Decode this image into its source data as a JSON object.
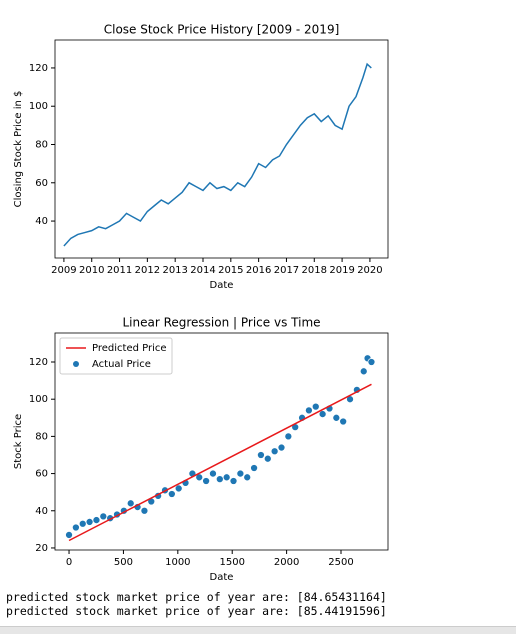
{
  "chart_data": [
    {
      "type": "line",
      "title": "Close Stock Price History [2009 - 2019]",
      "xlabel": "Date",
      "ylabel": "Closing Stock Price in $",
      "color": "#1f77b4",
      "x": [
        2009.0,
        2009.25,
        2009.5,
        2009.75,
        2010.0,
        2010.25,
        2010.5,
        2010.75,
        2011.0,
        2011.25,
        2011.5,
        2011.75,
        2012.0,
        2012.25,
        2012.5,
        2012.75,
        2013.0,
        2013.25,
        2013.5,
        2013.75,
        2014.0,
        2014.25,
        2014.5,
        2014.75,
        2015.0,
        2015.25,
        2015.5,
        2015.75,
        2016.0,
        2016.25,
        2016.5,
        2016.75,
        2017.0,
        2017.25,
        2017.5,
        2017.75,
        2018.0,
        2018.25,
        2018.5,
        2018.75,
        2019.0,
        2019.25,
        2019.5,
        2019.75,
        2019.9,
        2020.05
      ],
      "values": [
        27,
        31,
        33,
        34,
        35,
        37,
        36,
        38,
        40,
        44,
        42,
        40,
        45,
        48,
        51,
        49,
        52,
        55,
        60,
        58,
        56,
        60,
        57,
        58,
        56,
        60,
        58,
        63,
        70,
        68,
        72,
        74,
        80,
        85,
        90,
        94,
        96,
        92,
        95,
        90,
        88,
        100,
        105,
        115,
        122,
        120
      ],
      "xlim": [
        2008.68,
        2020.65
      ],
      "xticks": [
        2009,
        2010,
        2011,
        2012,
        2013,
        2014,
        2015,
        2016,
        2017,
        2018,
        2019,
        2020
      ],
      "ylim": [
        20.7,
        134.6
      ],
      "yticks": [
        40,
        60,
        80,
        100,
        120
      ]
    },
    {
      "type": "scatter",
      "title": "Linear Regression | Price vs Time",
      "xlabel": "Date",
      "ylabel": "Stock Price",
      "legend": "upper left",
      "series": [
        {
          "name": "Predicted Price",
          "type": "line",
          "color": "#e8191b",
          "x": [
            0,
            2780
          ],
          "values": [
            24,
            108
          ]
        },
        {
          "name": "Actual Price",
          "type": "scatter",
          "color": "#1f77b4",
          "x": [
            0,
            63,
            126,
            189,
            252,
            315,
            378,
            441,
            504,
            567,
            630,
            693,
            756,
            819,
            882,
            945,
            1008,
            1071,
            1134,
            1197,
            1260,
            1323,
            1386,
            1449,
            1512,
            1575,
            1638,
            1701,
            1764,
            1827,
            1890,
            1953,
            2016,
            2079,
            2142,
            2205,
            2268,
            2331,
            2394,
            2457,
            2520,
            2583,
            2646,
            2709,
            2744,
            2780
          ],
          "values": [
            27,
            31,
            33,
            34,
            35,
            37,
            36,
            38,
            40,
            44,
            42,
            40,
            45,
            48,
            51,
            49,
            52,
            55,
            60,
            58,
            56,
            60,
            57,
            58,
            56,
            60,
            58,
            63,
            70,
            68,
            72,
            74,
            80,
            85,
            90,
            94,
            96,
            92,
            95,
            90,
            88,
            100,
            105,
            115,
            122,
            120
          ]
        }
      ],
      "xlim": [
        -129,
        2932
      ],
      "xticks": [
        0,
        500,
        1000,
        1500,
        2000,
        2500
      ],
      "ylim": [
        18.9,
        135.6
      ],
      "yticks": [
        20,
        40,
        60,
        80,
        100,
        120
      ]
    }
  ],
  "output": [
    "predicted stock market price of year are: [84.65431164]",
    "predicted stock market price of year are: [85.44191596]"
  ]
}
